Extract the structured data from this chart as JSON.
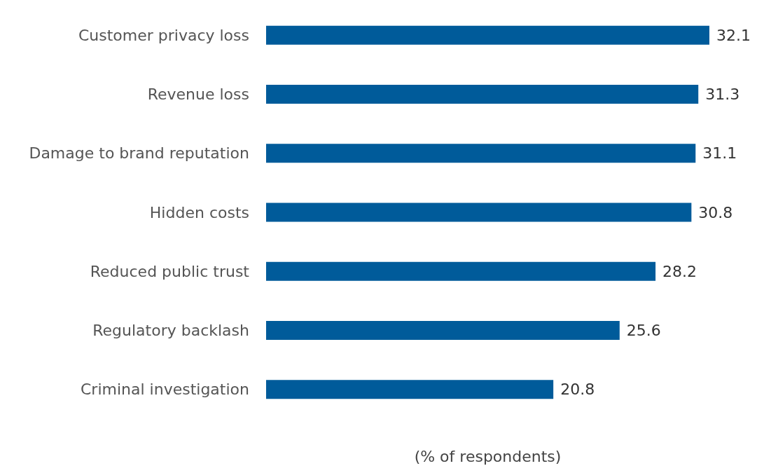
{
  "chart_data": {
    "type": "bar",
    "orientation": "horizontal",
    "xlabel": "(% of respondents)",
    "categories": [
      "Customer privacy loss",
      "Revenue loss",
      "Damage to brand reputation",
      "Hidden costs",
      "Reduced public trust",
      "Regulatory backlash",
      "Criminal investigation"
    ],
    "values": [
      32.1,
      31.3,
      31.1,
      30.8,
      28.2,
      25.6,
      20.8
    ],
    "color": "#005b9a",
    "data_labels": true
  }
}
